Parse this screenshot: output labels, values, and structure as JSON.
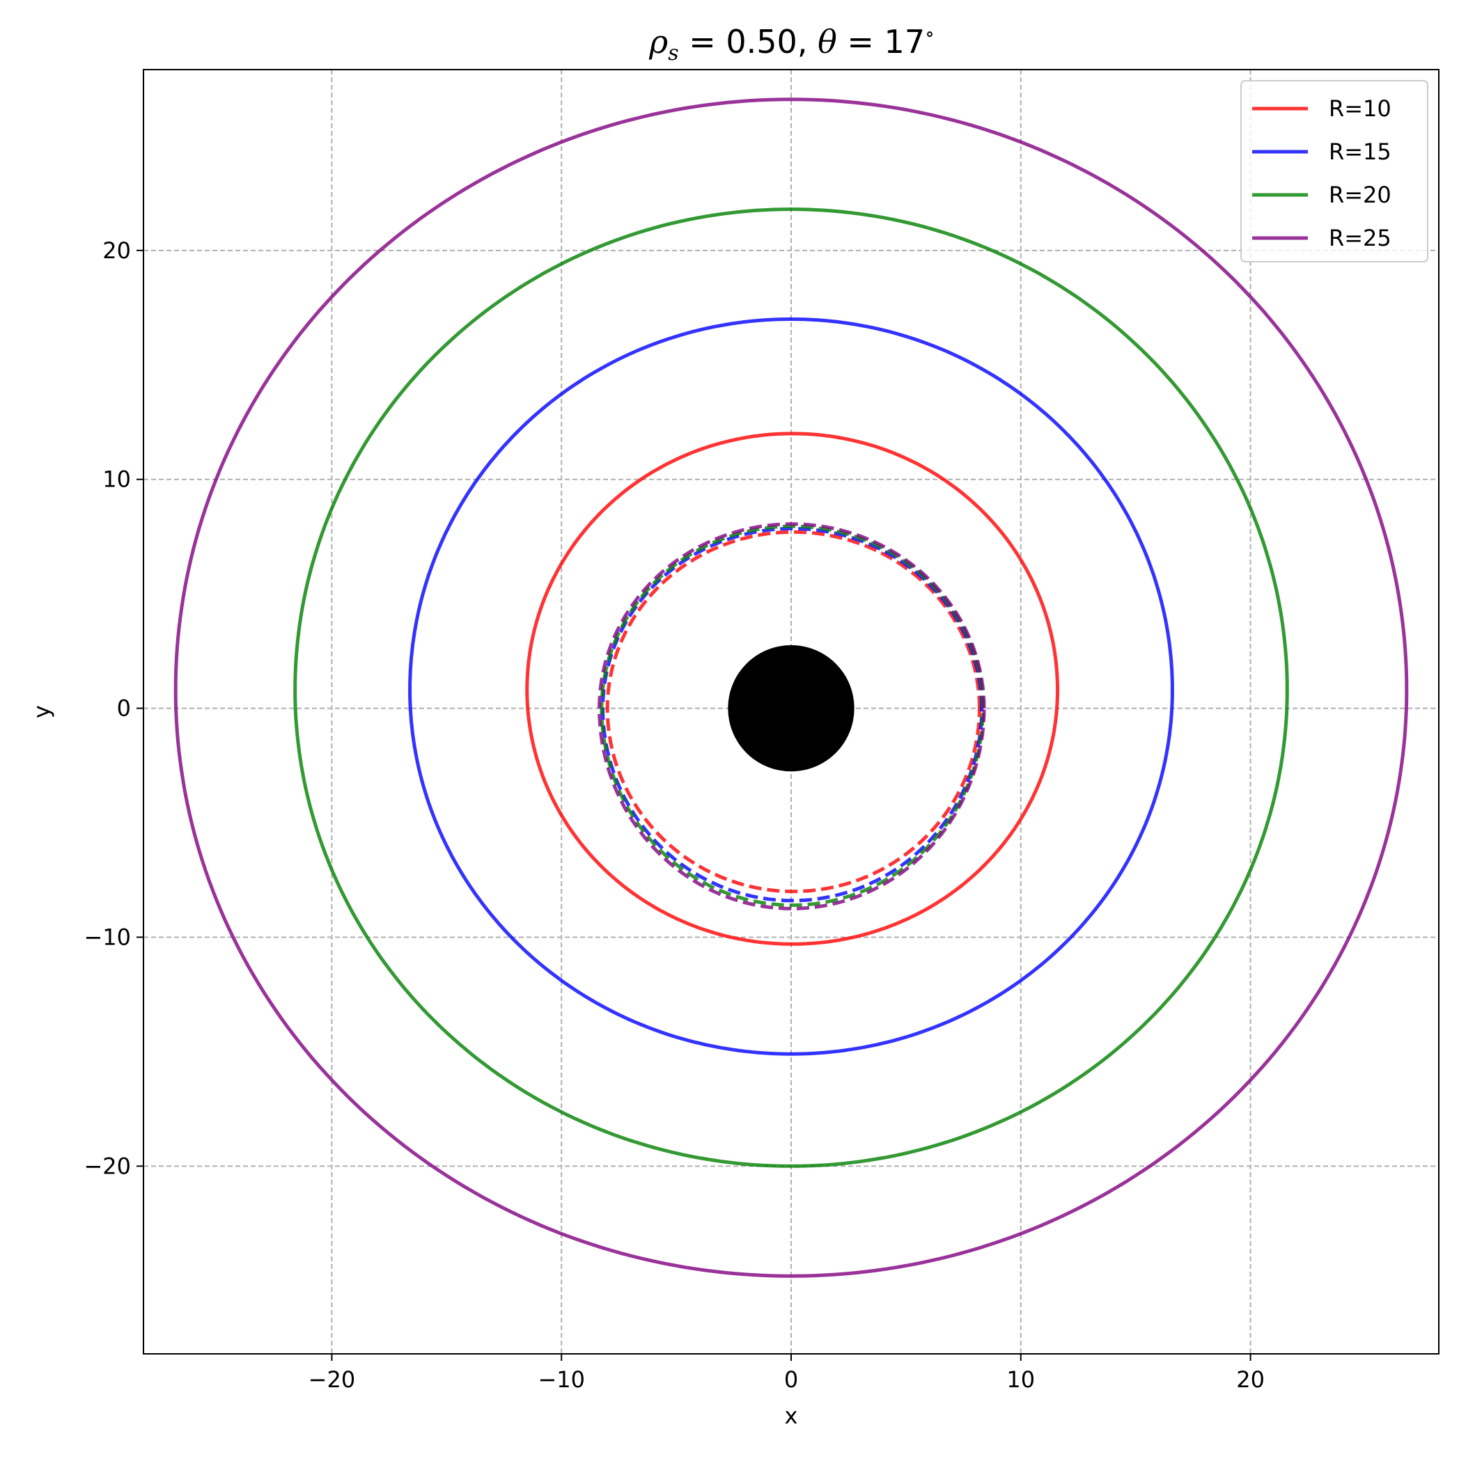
{
  "chart_data": {
    "type": "line",
    "title": "ρs = 0.50,  θ = 17°",
    "title_parts": {
      "rho": "ρ",
      "rho_sub": "s",
      "rho_value": " = 0.50,  ",
      "theta": "θ",
      "theta_value": " = 17",
      "degree": "∘"
    },
    "xlabel": "x",
    "ylabel": "y",
    "xlim": [
      -28.2,
      28.2
    ],
    "ylim": [
      -28.2,
      27.9
    ],
    "xticks": [
      -20,
      -10,
      0,
      10,
      20
    ],
    "yticks": [
      -20,
      -10,
      0,
      10,
      20
    ],
    "xtick_labels": [
      "−20",
      "−10",
      "0",
      "10",
      "20"
    ],
    "ytick_labels": [
      "−20",
      "−10",
      "0",
      "10",
      "20"
    ],
    "grid": true,
    "legend_position": "top-right",
    "central_disk": {
      "x": 0,
      "y": 0,
      "radius": 2.75,
      "color": "#000000"
    },
    "series": [
      {
        "name": "R=10",
        "color": "#ff0000",
        "direct": {
          "x_min": -11.5,
          "x_max": 11.6,
          "y_min": -10.3,
          "y_max": 12.0,
          "y_mid": 0.8
        },
        "indirect": {
          "x_min": -8.0,
          "x_max": 8.2,
          "y_min": -8.0,
          "y_max": 7.7,
          "y_mid": 0.0
        }
      },
      {
        "name": "R=15",
        "color": "#0000ff",
        "direct": {
          "x_min": -16.6,
          "x_max": 16.6,
          "y_min": -15.1,
          "y_max": 17.0,
          "y_mid": 0.8
        },
        "indirect": {
          "x_min": -8.2,
          "x_max": 8.3,
          "y_min": -8.4,
          "y_max": 7.85,
          "y_mid": 0.0
        }
      },
      {
        "name": "R=20",
        "color": "#008000",
        "direct": {
          "x_min": -21.6,
          "x_max": 21.6,
          "y_min": -20.0,
          "y_max": 21.8,
          "y_mid": 0.8
        },
        "indirect": {
          "x_min": -8.25,
          "x_max": 8.35,
          "y_min": -8.6,
          "y_max": 7.95,
          "y_mid": 0.0
        }
      },
      {
        "name": "R=25",
        "color": "#800080",
        "direct": {
          "x_min": -26.8,
          "x_max": 26.8,
          "y_min": -24.8,
          "y_max": 26.6,
          "y_mid": 0.8
        },
        "indirect": {
          "x_min": -8.35,
          "x_max": 8.4,
          "y_min": -8.75,
          "y_max": 8.05,
          "y_mid": 0.0
        }
      }
    ]
  }
}
